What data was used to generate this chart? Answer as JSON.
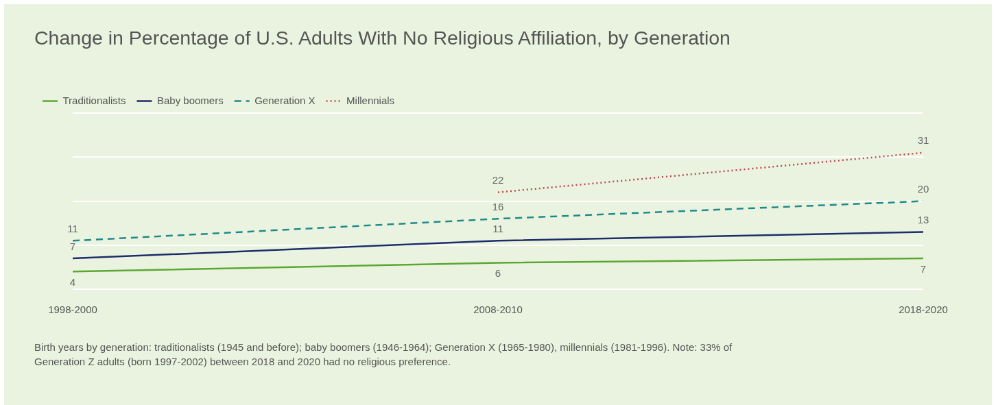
{
  "chart_data": {
    "type": "line",
    "title": "Change in Percentage of U.S. Adults With No Religious Affiliation, by Generation",
    "categories": [
      "1998-2000",
      "2008-2010",
      "2018-2020"
    ],
    "series": [
      {
        "name": "Traditionalists",
        "color": "#5aa832",
        "values": [
          4,
          6,
          7
        ],
        "line_style": "solid"
      },
      {
        "name": "Baby boomers",
        "color": "#1c2d6b",
        "values": [
          7,
          11,
          13
        ],
        "line_style": "solid"
      },
      {
        "name": "Generation X",
        "color": "#1f8a8a",
        "values": [
          11,
          16,
          20
        ],
        "line_style": "dashed"
      },
      {
        "name": "Millennials",
        "color": "#c0464b",
        "values": [
          null,
          22,
          31
        ],
        "line_style": "dotted"
      }
    ],
    "ylim": [
      0,
      40
    ],
    "yticks": [
      {
        "value": 0,
        "label": null
      },
      {
        "value": 10,
        "label": null
      },
      {
        "value": 20,
        "label": null
      },
      {
        "value": 30,
        "label": null
      },
      {
        "value": 40,
        "label": null
      }
    ],
    "tick_labels": "x",
    "grid": "y",
    "legend": "top left",
    "marker": "none",
    "data_labels": true,
    "annotations": [
      "Birth years by generation: traditionalists (1945 and before); baby boomers (1946-1964); Generation X (1965-1980), millennials (1981-1996). Note: 33% of Generation Z adults (born 1997-2002) between 2018 and 2020 had no religious preference."
    ]
  }
}
